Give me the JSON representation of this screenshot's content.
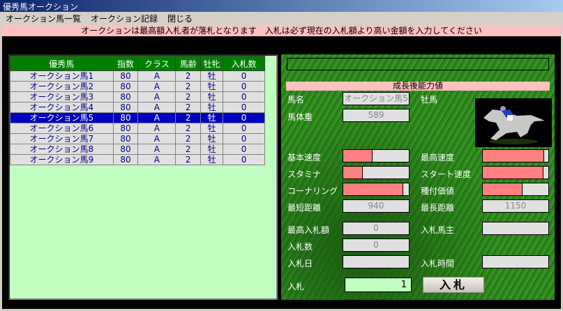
{
  "window": {
    "title": "優秀馬オークション"
  },
  "menu": [
    "オークション馬一覧",
    "オークション記録",
    "閉じる"
  ],
  "banner": "オークションは最高額入札者が落札となります　入札は必ず現在の入札額より高い金額を入力してください",
  "table": {
    "headers": [
      "優秀馬",
      "指数",
      "クラス",
      "馬齢",
      "牡牝",
      "入札数"
    ],
    "rows": [
      [
        "オークション馬1",
        "80",
        "A",
        "2",
        "牡",
        "0"
      ],
      [
        "オークション馬2",
        "80",
        "A",
        "2",
        "牡",
        "0"
      ],
      [
        "オークション馬3",
        "80",
        "A",
        "2",
        "牡",
        "0"
      ],
      [
        "オークション馬4",
        "80",
        "A",
        "2",
        "牡",
        "0"
      ],
      [
        "オークション馬5",
        "80",
        "A",
        "2",
        "牡",
        "0"
      ],
      [
        "オークション馬6",
        "80",
        "A",
        "2",
        "牡",
        "0"
      ],
      [
        "オークション馬7",
        "80",
        "A",
        "2",
        "牡",
        "0"
      ],
      [
        "オークション馬8",
        "80",
        "A",
        "2",
        "牡",
        "0"
      ],
      [
        "オークション馬9",
        "80",
        "A",
        "2",
        "牡",
        "0"
      ]
    ],
    "selected_index": 4
  },
  "detail": {
    "heading": "成長後能力値",
    "name_label": "馬名",
    "name": "オークション馬5",
    "sex": "牡馬",
    "weight_label": "馬体重",
    "weight": "589",
    "bars": [
      {
        "label": "基本速度",
        "value": 0.45
      },
      {
        "label": "最高速度",
        "value": 0.94
      },
      {
        "label": "スタミナ",
        "value": 0.3
      },
      {
        "label": "スタート速度",
        "value": 0.93
      },
      {
        "label": "コーナリング",
        "value": 0.92
      },
      {
        "label": "種付価値",
        "value": 0.61
      }
    ],
    "min_dist_label": "最短距離",
    "min_dist": "940",
    "max_dist_label": "最長距離",
    "max_dist": "1150",
    "top_bid_label": "最高入札額",
    "top_bid": "0",
    "owner_label": "入札馬主",
    "owner": "",
    "bid_count_label": "入札数",
    "bid_count": "0",
    "bid_date_label": "入札日",
    "bid_date": "",
    "bid_time_label": "入札時間",
    "bid_time": "",
    "bid_label": "入札",
    "bid_value": "1",
    "bid_button": "入札",
    "bar_color": "#ff8080"
  }
}
